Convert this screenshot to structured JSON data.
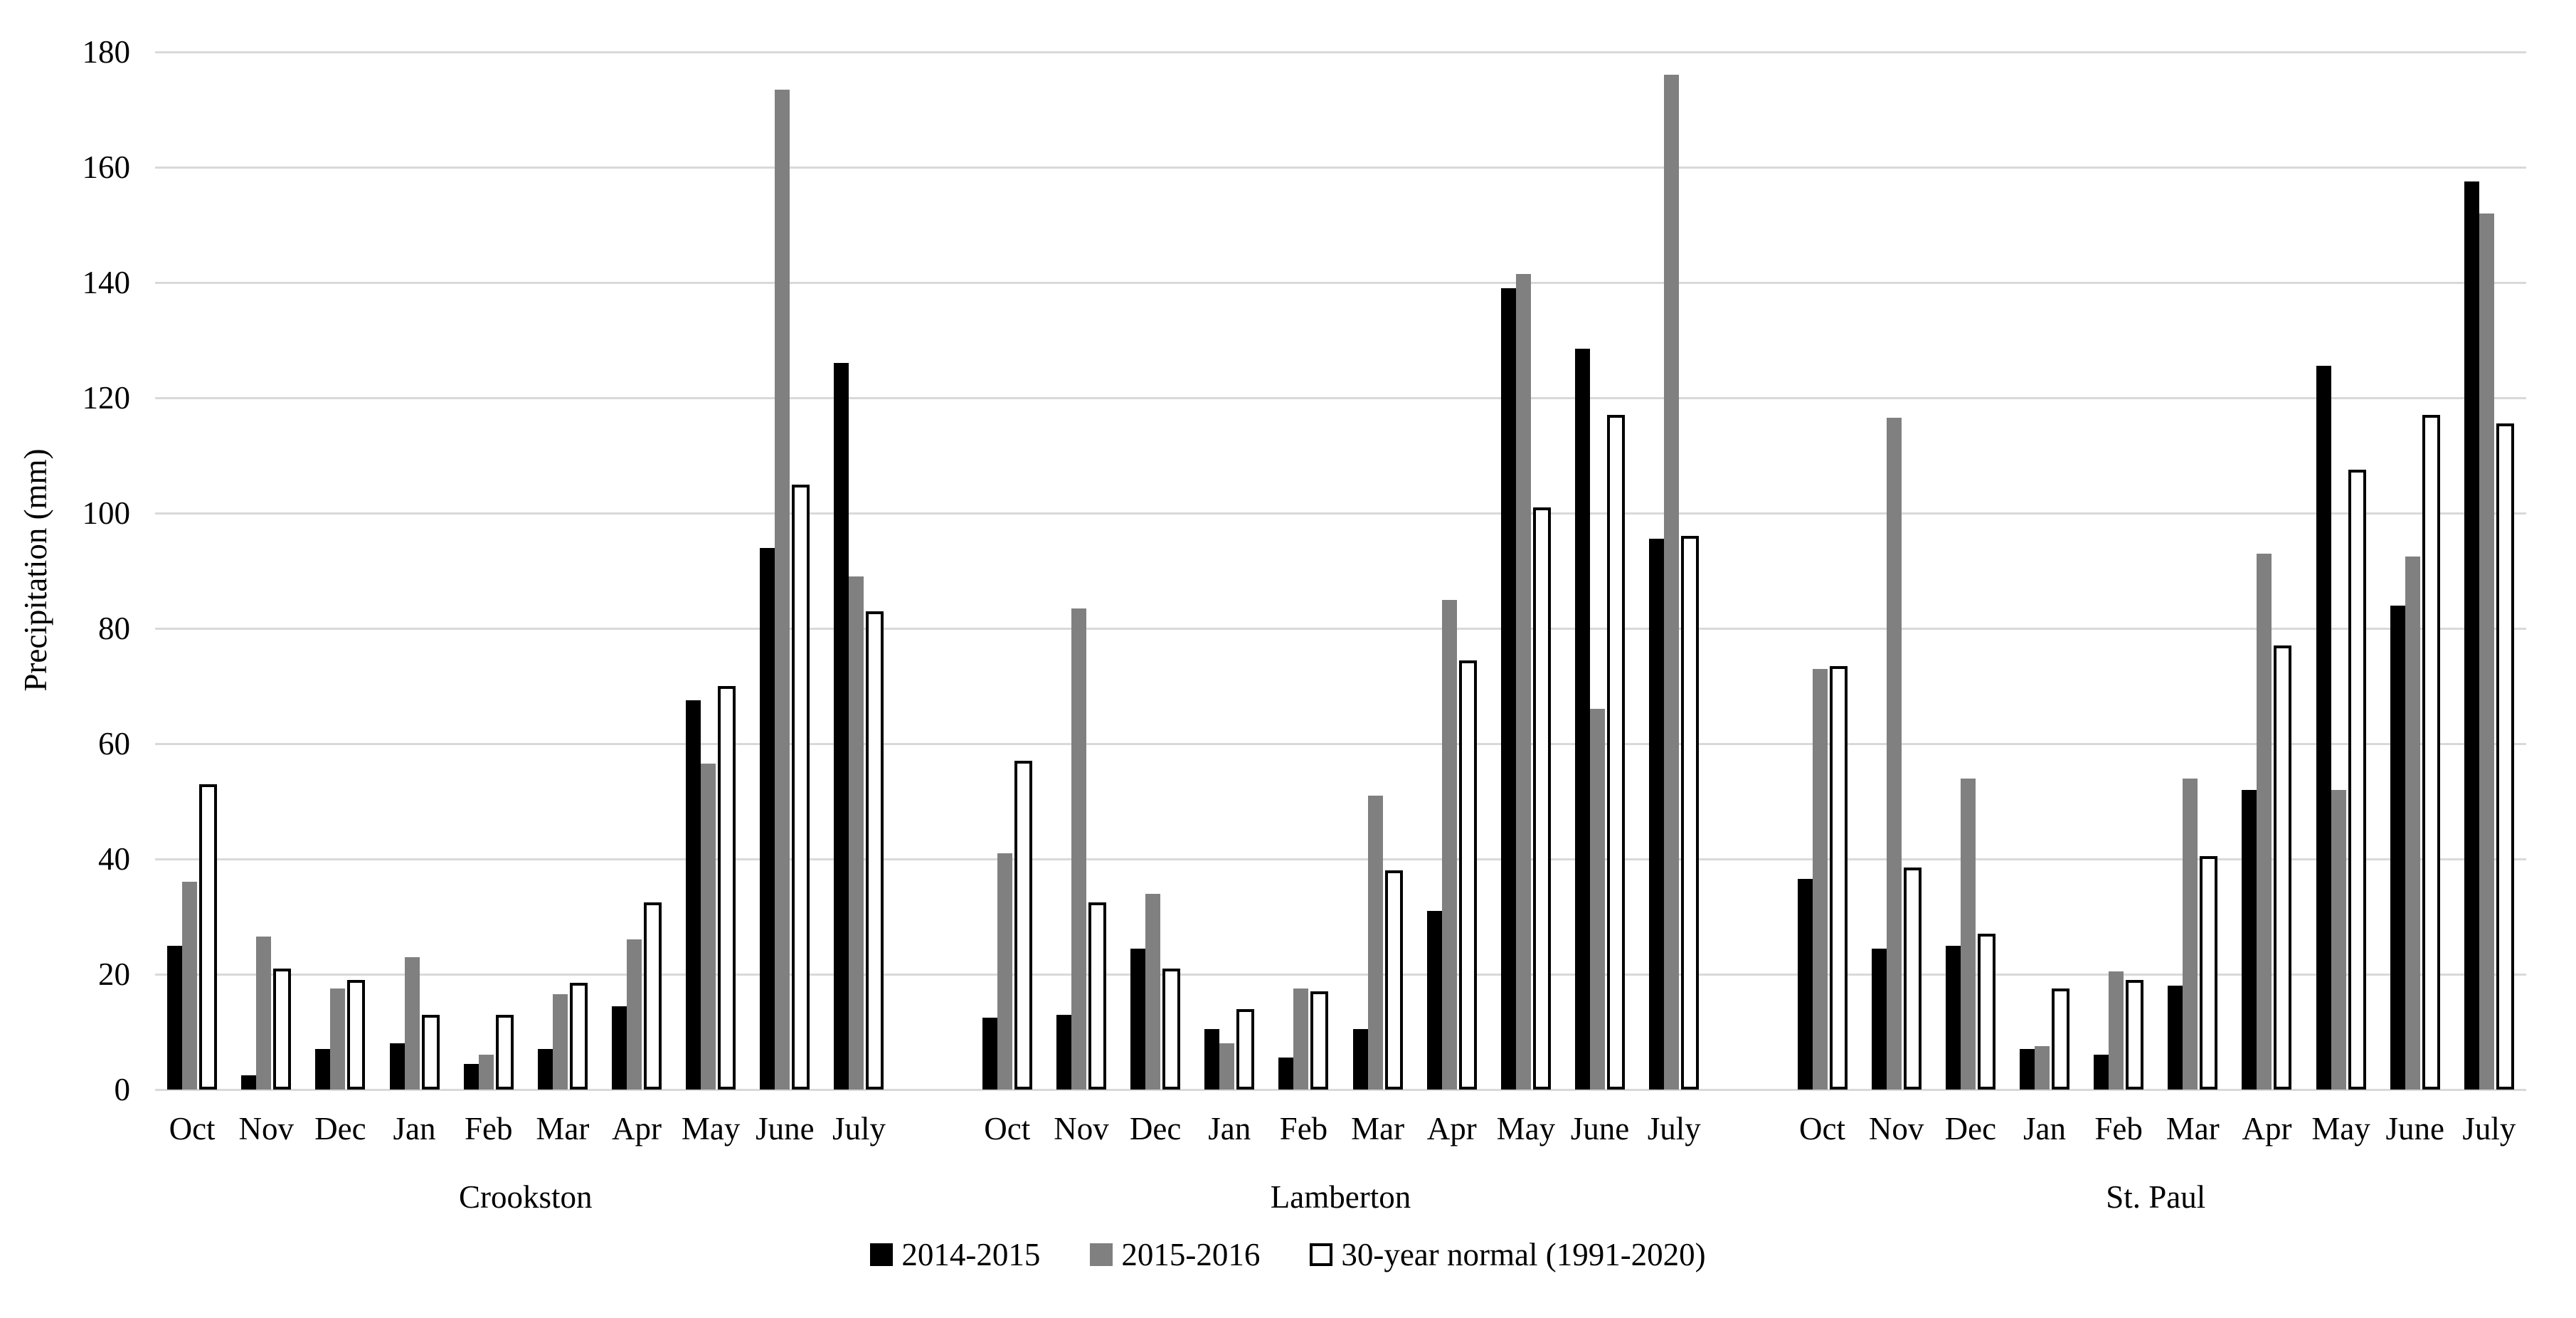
{
  "chart_data": {
    "type": "bar",
    "title": "",
    "ylabel": "Precipitation (mm)",
    "ylim": [
      0,
      180
    ],
    "ytick_step": 20,
    "grid": true,
    "legend_position": "bottom",
    "categories_months": [
      "Oct",
      "Nov",
      "Dec",
      "Jan",
      "Feb",
      "Mar",
      "Apr",
      "May",
      "June",
      "July"
    ],
    "locations": [
      "Crookston",
      "Lamberton",
      "St. Paul"
    ],
    "series": [
      {
        "name": "2014-2015",
        "color": "#000000",
        "values": [
          [
            25,
            2.5,
            7,
            8,
            4.5,
            7,
            14.5,
            67.5,
            94,
            126
          ],
          [
            12.5,
            13,
            24.5,
            10.5,
            5.5,
            10.5,
            31,
            139,
            128.5,
            95.5
          ],
          [
            36.5,
            24.5,
            25,
            7,
            6,
            18,
            52,
            125.5,
            84,
            157.5
          ]
        ]
      },
      {
        "name": "2015-2016",
        "color": "#808080",
        "values": [
          [
            36,
            26.5,
            17.5,
            23,
            6,
            16.5,
            26,
            56.5,
            173.5,
            89
          ],
          [
            41,
            83.5,
            34,
            8,
            17.5,
            51,
            85,
            141.5,
            66,
            176
          ],
          [
            73,
            116.5,
            54,
            7.5,
            20.5,
            54,
            93,
            52,
            92.5,
            152
          ]
        ]
      },
      {
        "name": "30-year normal (1991-2020)",
        "color": "#ffffff",
        "values": [
          [
            53,
            21,
            19,
            13,
            13,
            18.5,
            32.5,
            70,
            105,
            83
          ],
          [
            57,
            32.5,
            21,
            14,
            17,
            38,
            74.5,
            101,
            117,
            96
          ],
          [
            73.5,
            38.5,
            27,
            17.5,
            19,
            40.5,
            77,
            107.5,
            117,
            115.5
          ]
        ]
      }
    ]
  }
}
